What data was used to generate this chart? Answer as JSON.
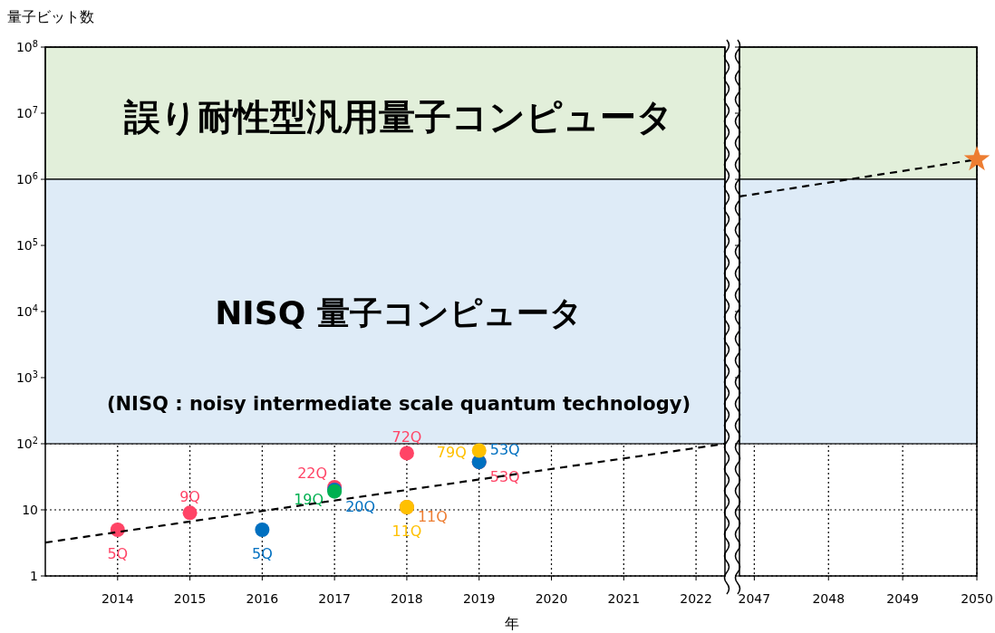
{
  "chart_data": [
    {
      "type": "scatter",
      "ylabel": "量子ビット数",
      "xlabel": "年",
      "log": "y",
      "xlim": [
        2013,
        2022.4
      ],
      "ylim": [
        1,
        100000000
      ],
      "xticks": [
        2014,
        2015,
        2016,
        2017,
        2018,
        2019,
        2020,
        2021,
        2022
      ],
      "yticks": [
        1,
        10,
        {
          "value": 100,
          "label": "10$^{2}$"
        },
        {
          "value": 1000,
          "label": "10$^{3}$"
        },
        {
          "value": 10000,
          "label": "10$^{4}$"
        },
        {
          "value": 100000,
          "label": "10$^{5}$"
        },
        {
          "value": 1000000,
          "label": "10$^{6}$"
        },
        {
          "value": 10000000,
          "label": "10$^{7}$"
        },
        {
          "value": 100000000,
          "label": "10$^{8}$"
        }
      ],
      "grid": true,
      "marker": "circle",
      "bands": [
        {
          "axis": "y",
          "from": 1000000,
          "to": 100000000,
          "label": "誤り耐性型汎用量子コンピュータ",
          "color": "#e2efda"
        },
        {
          "axis": "y",
          "from": 100,
          "to": 1000000,
          "label": "NISQ 量子コンピュータ",
          "color": "#deebf7"
        }
      ],
      "annotations": [
        "(NISQ : noisy intermediate scale quantum technology)"
      ],
      "series": [
        {
          "color": "#ff4466",
          "x": [
            2014,
            2015,
            2017,
            2018,
            2019
          ],
          "values": [
            5,
            9,
            22,
            72,
            53
          ],
          "value_labels": [
            "5Q",
            "9Q",
            "22Q",
            "72Q",
            "53Q"
          ]
        },
        {
          "color": "#0070c0",
          "x": [
            2016,
            2017,
            2019
          ],
          "values": [
            5,
            20,
            53
          ],
          "value_labels": [
            "5Q",
            "20Q",
            "53Q"
          ]
        },
        {
          "color": "#00b050",
          "x": [
            2017
          ],
          "values": [
            19
          ],
          "value_labels": [
            "19Q"
          ]
        },
        {
          "color": "#ed7d31",
          "x": [
            2018
          ],
          "values": [
            11
          ],
          "value_labels": [
            "11Q"
          ]
        },
        {
          "color": "#ffc000",
          "x": [
            2018,
            2019
          ],
          "values": [
            11,
            79
          ],
          "value_labels": [
            "11Q",
            "79Q"
          ]
        },
        {
          "type": "line",
          "color": "#000000",
          "line_style": "dashed",
          "marker": "none",
          "x": [
            2013,
            2022.4
          ],
          "values": [
            3.2,
            100
          ]
        }
      ]
    },
    {
      "type": "scatter",
      "log": "y",
      "xlim": [
        2046.8,
        2050
      ],
      "ylim": [
        1,
        100000000
      ],
      "xticks": [
        2047,
        2048,
        2049,
        2050
      ],
      "yticks": [
        1,
        10,
        100,
        1000,
        10000,
        100000,
        1000000,
        10000000,
        100000000
      ],
      "tick_labels": "x",
      "grid": true,
      "bands": [
        {
          "axis": "y",
          "from": 1000000,
          "to": 100000000,
          "color": "#e2efda"
        },
        {
          "axis": "y",
          "from": 100,
          "to": 1000000,
          "color": "#deebf7"
        }
      ],
      "series": [
        {
          "type": "line",
          "color": "#000000",
          "line_style": "dashed",
          "marker": "none",
          "x": [
            2046.8,
            2050
          ],
          "values": [
            550000,
            2000000
          ]
        },
        {
          "color": "#ed7d31",
          "marker": "star",
          "x": [
            2050
          ],
          "values": [
            2000000
          ]
        }
      ]
    }
  ]
}
